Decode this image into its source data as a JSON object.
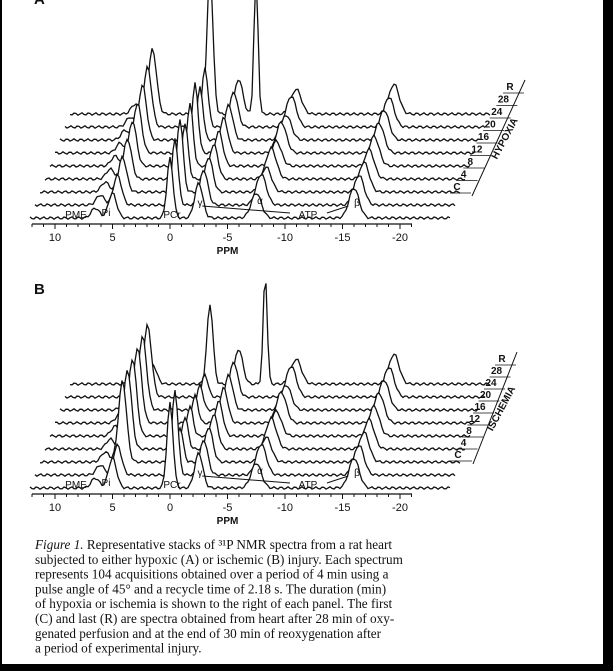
{
  "panels": [
    {
      "label": "A",
      "ticks": [
        "10",
        "5",
        "0",
        "-5",
        "-10",
        "-15",
        "-20"
      ],
      "axis_title": "PPM",
      "peaks": {
        "pme": "PME",
        "pi": "Pi",
        "pcr": "PCr",
        "gamma": "γ",
        "alpha": "α",
        "atp": "ATP",
        "beta": "β"
      },
      "stack": [
        "R",
        "28",
        "24",
        "20",
        "16",
        "12",
        "8",
        "4",
        "C"
      ],
      "condition": "HYPOXIA"
    },
    {
      "label": "B",
      "ticks": [
        "10",
        "5",
        "0",
        "-5",
        "-10",
        "-15",
        "-20"
      ],
      "axis_title": "PPM",
      "peaks": {
        "pme": "PME",
        "pi": "Pi",
        "pcr": "PCr",
        "gamma": "γ",
        "alpha": "α",
        "atp": "ATP",
        "beta": "β"
      },
      "stack": [
        "R",
        "28",
        "24",
        "20",
        "16",
        "12",
        "8",
        "4",
        "C"
      ],
      "condition": "ISCHEMIA"
    }
  ],
  "caption": {
    "label": "Figure 1.",
    "lines": [
      "Representative stacks of ³¹P NMR spectra from a rat heart",
      "subjected to either hypoxic (A) or ischemic (B) injury. Each spectrum",
      "represents 104 acquisitions obtained over a period of 4 min using a",
      "pulse angle of 45° and a recycle time of 2.18 s. The duration (min)",
      "of hypoxia or ischemia is shown to the right of each panel. The first",
      "(C) and last (R) are spectra obtained from heart after 28 min of oxy-",
      "genated perfusion and at the end of 30 min of reoxygenation after",
      "a period of experimental injury."
    ]
  }
}
